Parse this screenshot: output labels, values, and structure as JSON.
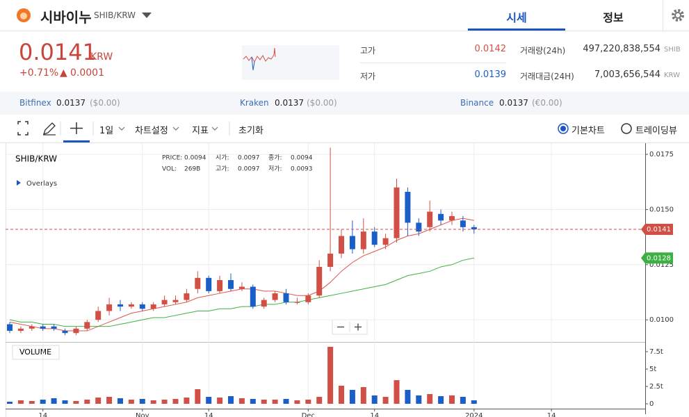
{
  "header": {
    "coin": "시바이누",
    "pair": "SHIB/KRW",
    "tabs": [
      "시세",
      "정보"
    ]
  },
  "quote": {
    "price": "0.0141",
    "unit": "KRW",
    "change_pct": "+0.71%",
    "change": "0.0001",
    "stats": [
      {
        "label": "고가",
        "value": "0.0142"
      },
      {
        "label": "저가",
        "value": "0.0139"
      },
      {
        "label": "거래량(24h)",
        "value": "497,220,838,554",
        "unit": "SHIB"
      },
      {
        "label": "거래대금(24H)",
        "value": "7,003,656,544",
        "unit": "KRW"
      }
    ],
    "exchanges": [
      {
        "name": "Bitfinex",
        "price": "0.0137",
        "usd": "($0.00)"
      },
      {
        "name": "Kraken",
        "price": "0.0137",
        "usd": "($0.00)"
      },
      {
        "name": "Binance",
        "price": "0.0137",
        "usd": "(€0.00)"
      }
    ]
  },
  "toolbar": {
    "items": [
      "1일",
      "차트설정",
      "지표",
      "초기화"
    ],
    "modes": [
      "기본차트",
      "트레이딩뷰"
    ]
  },
  "chart_data": {
    "type": "candlestick",
    "title": "SHIB/KRW",
    "overlays": "Overlays",
    "info": [
      [
        "PRICE:",
        "0.0094"
      ],
      [
        "시가:",
        "0.0097"
      ],
      [
        "종가:",
        "0.0094"
      ],
      [
        "VOL:",
        "269B"
      ],
      [
        "고가:",
        "0.0097"
      ],
      [
        "저가:",
        "0.0093"
      ]
    ],
    "categories": [
      null,
      null,
      null,
      "14",
      null,
      null,
      null,
      null,
      null,
      null,
      null,
      null,
      "Nov",
      null,
      null,
      null,
      null,
      null,
      "14",
      null,
      null,
      null,
      null,
      null,
      null,
      null,
      null,
      "Dec",
      null,
      null,
      null,
      null,
      null,
      "14",
      null,
      null,
      null,
      null,
      null,
      null,
      null,
      null,
      "2024",
      null,
      null,
      null,
      null,
      null,
      null,
      "14"
    ],
    "open": [
      0.0098,
      0.0095,
      0.0096,
      0.0097,
      0.0097,
      0.0095,
      0.0094,
      0.0096,
      0.01,
      0.0104,
      0.0107,
      0.0106,
      0.0107,
      0.0105,
      0.0107,
      0.0108,
      0.0109,
      0.0114,
      0.0119,
      0.0113,
      0.0118,
      0.0114,
      0.0115,
      0.0106,
      0.0109,
      0.0112,
      0.0108,
      0.0108,
      0.0111,
      0.0124,
      0.013,
      0.0138,
      0.0132,
      0.014,
      0.0134,
      0.0137,
      0.0158,
      0.0144,
      0.0142,
      0.0148,
      0.0145,
      0.0145,
      0.0142,
      null,
      null,
      null,
      null,
      null,
      null,
      null
    ],
    "high": [
      0.0099,
      0.0097,
      0.0098,
      0.0098,
      0.0098,
      0.0096,
      0.0097,
      0.01,
      0.0106,
      0.011,
      0.0109,
      0.0108,
      0.0108,
      0.0108,
      0.0111,
      0.0111,
      0.0114,
      0.0122,
      0.012,
      0.012,
      0.0121,
      0.0117,
      0.0116,
      0.011,
      0.0113,
      0.0114,
      0.011,
      0.0112,
      0.0127,
      0.0178,
      0.0141,
      0.0145,
      0.0146,
      0.0142,
      0.0139,
      0.0164,
      0.016,
      0.0146,
      0.0154,
      0.015,
      0.0149,
      0.0147,
      0.0143,
      null,
      null,
      null,
      null,
      null,
      null,
      null
    ],
    "low": [
      0.0094,
      0.0094,
      0.0095,
      0.0095,
      0.0095,
      0.0093,
      0.0093,
      0.0095,
      0.0099,
      0.0102,
      0.0104,
      0.0105,
      0.0104,
      0.0104,
      0.0106,
      0.0107,
      0.0108,
      0.0112,
      0.0112,
      0.0112,
      0.0113,
      0.0113,
      0.0105,
      0.0105,
      0.0108,
      0.0107,
      0.0107,
      0.0107,
      0.011,
      0.0122,
      0.0128,
      0.013,
      0.013,
      0.0133,
      0.0132,
      0.0135,
      0.0138,
      0.0138,
      0.014,
      0.0143,
      0.0143,
      0.014,
      0.0139,
      null,
      null,
      null,
      null,
      null,
      null,
      null
    ],
    "close": [
      0.0095,
      0.0096,
      0.0097,
      0.0096,
      0.0096,
      0.0094,
      0.0096,
      0.0099,
      0.0104,
      0.0107,
      0.0106,
      0.0107,
      0.0105,
      0.0107,
      0.0109,
      0.0109,
      0.0112,
      0.0119,
      0.0113,
      0.0118,
      0.0114,
      0.0115,
      0.0106,
      0.0109,
      0.0112,
      0.0108,
      0.0108,
      0.0111,
      0.0124,
      0.013,
      0.0138,
      0.0132,
      0.014,
      0.0134,
      0.0137,
      0.016,
      0.0144,
      0.014,
      0.0149,
      0.0145,
      0.0147,
      0.0142,
      0.0141,
      null,
      null,
      null,
      null,
      null,
      null,
      null
    ],
    "up_color": "#d24f45",
    "down_color": "#1a5fc8",
    "moving_averages": [
      {
        "color": "#e0554a",
        "values": [
          0.0099,
          0.0098,
          0.0097,
          0.0096,
          0.0096,
          0.0095,
          0.0095,
          0.0095,
          0.0097,
          0.0099,
          0.0101,
          0.0103,
          0.0104,
          0.0105,
          0.0106,
          0.0107,
          0.0108,
          0.011,
          0.0111,
          0.0112,
          0.0113,
          0.0114,
          0.0114,
          0.0113,
          0.0113,
          0.0112,
          0.0111,
          0.0111,
          0.0113,
          0.0117,
          0.0122,
          0.0126,
          0.0129,
          0.0131,
          0.0133,
          0.0136,
          0.0138,
          0.0139,
          0.0141,
          0.0143,
          0.0145,
          0.0146,
          0.0145,
          null,
          null,
          null,
          null,
          null,
          null,
          null
        ]
      },
      {
        "color": "#3cb043",
        "values": [
          0.01,
          0.0099,
          0.0099,
          0.0098,
          0.0098,
          0.0097,
          0.0097,
          0.0097,
          0.0097,
          0.0097,
          0.0098,
          0.0099,
          0.01,
          0.0101,
          0.0101,
          0.0102,
          0.0103,
          0.0104,
          0.0104,
          0.0105,
          0.0105,
          0.0106,
          0.0106,
          0.0107,
          0.0107,
          0.0108,
          0.0108,
          0.0109,
          0.011,
          0.0111,
          0.0112,
          0.0113,
          0.0114,
          0.0115,
          0.0116,
          0.0118,
          0.012,
          0.0121,
          0.0122,
          0.0124,
          0.0125,
          0.0127,
          0.0128,
          null,
          null,
          null,
          null,
          null,
          null,
          null
        ]
      }
    ],
    "price_badges": [
      {
        "value": 0.0141,
        "color": "#d24f45"
      },
      {
        "value": 0.0128,
        "color": "#3cb043"
      }
    ],
    "ylim": [
      0.00906,
      0.01788
    ],
    "yticks": [
      {
        "value": 0.01,
        "label": "0.0100"
      },
      0.0125,
      {
        "value": 0.015,
        "label": "0.0150"
      },
      0.0175
    ],
    "grid": true,
    "volume": {
      "label": "VOLUME",
      "values": [
        0.3,
        0.5,
        0.4,
        0.6,
        0.8,
        0.5,
        0.4,
        0.6,
        0.9,
        1.0,
        0.8,
        0.6,
        0.7,
        0.5,
        0.6,
        0.7,
        0.9,
        2.1,
        1.0,
        0.9,
        1.1,
        0.8,
        0.7,
        0.6,
        0.6,
        0.7,
        0.5,
        0.6,
        1.0,
        8.2,
        2.6,
        2.0,
        2.4,
        1.2,
        1.0,
        3.4,
        2.0,
        1.2,
        1.4,
        1.1,
        1.2,
        1.0,
        0.5,
        null,
        null,
        null,
        null,
        null,
        null,
        null
      ],
      "ylim": [
        -0.7,
        8.6
      ],
      "yticks": [
        0,
        {
          "value": 2.5,
          "label": "2.5t"
        },
        {
          "value": 5,
          "label": "5t"
        },
        {
          "value": 7.5,
          "label": "7.5t"
        }
      ]
    }
  }
}
